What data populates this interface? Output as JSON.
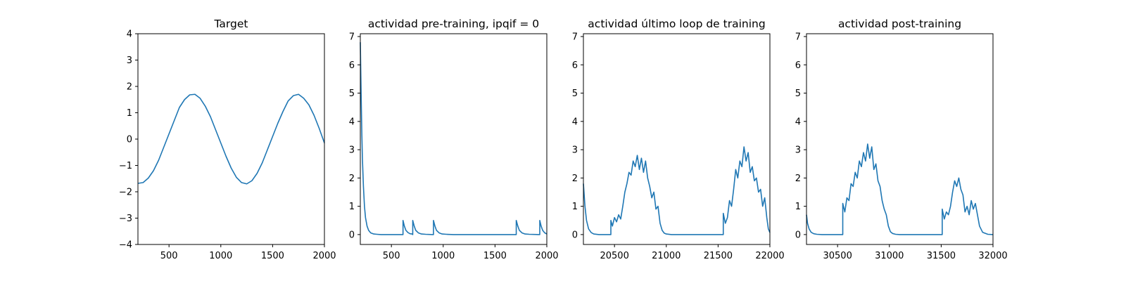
{
  "chart_data": [
    {
      "type": "line",
      "title": "Target",
      "xlabel": "",
      "ylabel": "",
      "xlim": [
        200,
        2000
      ],
      "ylim": [
        -4,
        4
      ],
      "xticks": [
        500,
        1000,
        1500,
        2000
      ],
      "yticks": [
        -4,
        -3,
        -2,
        -1,
        0,
        1,
        2,
        3,
        4
      ],
      "xtick_labels": [
        "500",
        "1000",
        "1500",
        "2000"
      ],
      "ytick_labels": [
        "−4",
        "−3",
        "−2",
        "−1",
        "0",
        "1",
        "2",
        "3",
        "4"
      ],
      "color": "#1f77b4",
      "grid": false,
      "series": [
        {
          "x": [
            200,
            250,
            300,
            350,
            400,
            450,
            500,
            550,
            600,
            650,
            700,
            750,
            800,
            850,
            900,
            950,
            1000,
            1050,
            1100,
            1150,
            1200,
            1250,
            1300,
            1350,
            1400,
            1450,
            1500,
            1550,
            1600,
            1650,
            1700,
            1750,
            1800,
            1850,
            1900,
            1950,
            2000
          ],
          "values": [
            -1.68,
            -1.65,
            -1.48,
            -1.2,
            -0.8,
            -0.3,
            0.2,
            0.7,
            1.2,
            1.5,
            1.68,
            1.7,
            1.55,
            1.25,
            0.85,
            0.35,
            -0.15,
            -0.65,
            -1.1,
            -1.45,
            -1.65,
            -1.7,
            -1.58,
            -1.3,
            -0.9,
            -0.4,
            0.1,
            0.6,
            1.05,
            1.45,
            1.65,
            1.7,
            1.55,
            1.3,
            0.9,
            0.4,
            -0.15
          ]
        }
      ]
    },
    {
      "type": "line",
      "title": "actividad pre-training, ipqif = 0",
      "xlabel": "",
      "ylabel": "",
      "xlim": [
        200,
        2000
      ],
      "ylim": [
        -0.35,
        7.1
      ],
      "xticks": [
        500,
        1000,
        1500,
        2000
      ],
      "yticks": [
        0,
        1,
        2,
        3,
        4,
        5,
        6,
        7
      ],
      "xtick_labels": [
        "500",
        "1000",
        "1500",
        "2000"
      ],
      "ytick_labels": [
        "0",
        "1",
        "2",
        "3",
        "4",
        "5",
        "6",
        "7"
      ],
      "color": "#1f77b4",
      "grid": false,
      "series": [
        {
          "x": [
            200,
            205,
            210,
            215,
            220,
            230,
            240,
            250,
            265,
            280,
            300,
            330,
            360,
            400,
            500,
            600,
            612,
            612,
            625,
            640,
            660,
            680,
            700,
            706,
            706,
            720,
            735,
            760,
            790,
            830,
            900,
            906,
            906,
            920,
            935,
            960,
            990,
            1030,
            1100,
            1200,
            1300,
            1400,
            1500,
            1600,
            1698,
            1705,
            1705,
            1720,
            1735,
            1760,
            1790,
            1830,
            1925,
            1932,
            1932,
            1945,
            1960,
            1980,
            2000
          ],
          "values": [
            6.8,
            5.6,
            4.5,
            3.5,
            2.7,
            1.7,
            1.0,
            0.6,
            0.3,
            0.15,
            0.06,
            0.02,
            0.01,
            0.0,
            0.0,
            0.0,
            0.0,
            0.5,
            0.3,
            0.15,
            0.07,
            0.03,
            0.02,
            0.0,
            0.5,
            0.3,
            0.15,
            0.06,
            0.02,
            0.01,
            0.0,
            0.0,
            0.5,
            0.3,
            0.15,
            0.06,
            0.02,
            0.01,
            0.0,
            0.0,
            0.0,
            0.0,
            0.0,
            0.0,
            0.0,
            0.0,
            0.5,
            0.3,
            0.15,
            0.06,
            0.02,
            0.01,
            0.0,
            0.0,
            0.5,
            0.3,
            0.15,
            0.06,
            0.02
          ]
        }
      ]
    },
    {
      "type": "line",
      "title": "actividad último loop de training",
      "xlabel": "",
      "ylabel": "",
      "xlim": [
        20200,
        22000
      ],
      "ylim": [
        -0.35,
        7.1
      ],
      "xticks": [
        20500,
        21000,
        21500,
        22000
      ],
      "yticks": [
        0,
        1,
        2,
        3,
        4,
        5,
        6,
        7
      ],
      "xtick_labels": [
        "20500",
        "21000",
        "21500",
        "22000"
      ],
      "ytick_labels": [
        "0",
        "1",
        "2",
        "3",
        "4",
        "5",
        "6",
        "7"
      ],
      "color": "#1f77b4",
      "grid": false,
      "series": [
        {
          "x": [
            20200,
            20215,
            20230,
            20250,
            20275,
            20300,
            20350,
            20400,
            20465,
            20465,
            20480,
            20500,
            20520,
            20540,
            20560,
            20580,
            20600,
            20620,
            20640,
            20660,
            20680,
            20700,
            20720,
            20740,
            20760,
            20780,
            20800,
            20820,
            20840,
            20860,
            20880,
            20900,
            20920,
            20940,
            20960,
            20980,
            21000,
            21050,
            21100,
            21200,
            21300,
            21400,
            21500,
            21550,
            21550,
            21570,
            21590,
            21610,
            21630,
            21650,
            21670,
            21690,
            21710,
            21730,
            21750,
            21770,
            21790,
            21810,
            21830,
            21850,
            21870,
            21890,
            21910,
            21930,
            21950,
            21970,
            21985,
            22000
          ],
          "values": [
            1.8,
            1.0,
            0.5,
            0.2,
            0.07,
            0.02,
            0.0,
            0.0,
            0.0,
            0.5,
            0.3,
            0.6,
            0.45,
            0.7,
            0.55,
            1.0,
            1.5,
            1.8,
            2.2,
            2.1,
            2.6,
            2.4,
            2.8,
            2.3,
            2.7,
            2.2,
            2.6,
            2.0,
            1.7,
            1.3,
            1.5,
            0.9,
            1.0,
            0.4,
            0.15,
            0.05,
            0.02,
            0.0,
            0.0,
            0.0,
            0.0,
            0.0,
            0.0,
            0.0,
            0.75,
            0.4,
            0.6,
            1.2,
            1.0,
            1.6,
            2.3,
            2.0,
            2.6,
            2.4,
            3.1,
            2.6,
            2.9,
            2.2,
            2.4,
            1.9,
            2.0,
            1.5,
            1.6,
            1.0,
            1.3,
            0.6,
            0.2,
            0.07
          ]
        }
      ]
    },
    {
      "type": "line",
      "title": "actividad post-training",
      "xlabel": "",
      "ylabel": "",
      "xlim": [
        30200,
        32000
      ],
      "ylim": [
        -0.35,
        7.1
      ],
      "xticks": [
        30500,
        31000,
        31500,
        32000
      ],
      "yticks": [
        0,
        1,
        2,
        3,
        4,
        5,
        6,
        7
      ],
      "xtick_labels": [
        "30500",
        "31000",
        "31500",
        "32000"
      ],
      "ytick_labels": [
        "0",
        "1",
        "2",
        "3",
        "4",
        "5",
        "6",
        "7"
      ],
      "color": "#1f77b4",
      "grid": false,
      "series": [
        {
          "x": [
            30200,
            30210,
            30225,
            30245,
            30270,
            30300,
            30350,
            30400,
            30450,
            30500,
            30550,
            30550,
            30570,
            30590,
            30610,
            30630,
            30650,
            30670,
            30690,
            30710,
            30730,
            30750,
            30770,
            30790,
            30810,
            30830,
            30850,
            30870,
            30890,
            30910,
            30930,
            30950,
            30970,
            30990,
            31010,
            31030,
            31060,
            31100,
            31200,
            31300,
            31400,
            31500,
            31510,
            31510,
            31530,
            31550,
            31570,
            31590,
            31610,
            31630,
            31650,
            31670,
            31690,
            31710,
            31730,
            31750,
            31770,
            31790,
            31810,
            31830,
            31850,
            31870,
            31900,
            31950,
            32000
          ],
          "values": [
            0.7,
            0.4,
            0.2,
            0.08,
            0.03,
            0.01,
            0.0,
            0.0,
            0.0,
            0.0,
            0.0,
            1.1,
            0.8,
            1.3,
            1.2,
            1.8,
            1.7,
            2.2,
            2.0,
            2.6,
            2.4,
            2.9,
            2.6,
            3.2,
            2.7,
            3.1,
            2.3,
            2.5,
            1.9,
            1.7,
            1.2,
            0.9,
            0.7,
            0.3,
            0.1,
            0.04,
            0.01,
            0.0,
            0.0,
            0.0,
            0.0,
            0.0,
            0.0,
            0.9,
            0.55,
            0.8,
            0.7,
            1.0,
            1.5,
            1.9,
            1.7,
            2.0,
            1.6,
            1.4,
            0.8,
            1.0,
            0.7,
            1.2,
            0.9,
            1.1,
            0.7,
            0.3,
            0.08,
            0.01,
            0.0
          ]
        }
      ]
    }
  ]
}
